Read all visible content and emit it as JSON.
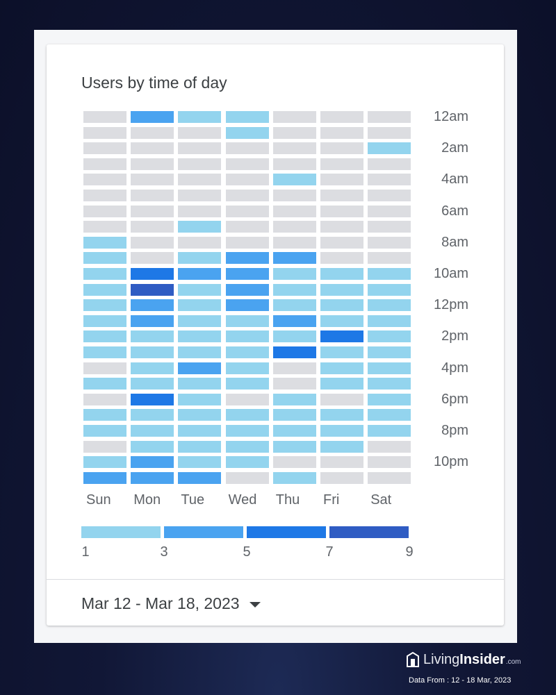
{
  "card": {
    "title": "Users by time of day",
    "date_range": "Mar 12 - Mar 18, 2023"
  },
  "branding": {
    "name_part1": "Living",
    "name_part2": "Insider",
    "name_suffix": ".com",
    "data_from": "Data From : 12 - 18 Mar, 2023"
  },
  "chart_data": {
    "type": "heatmap",
    "title": "Users by time of day",
    "columns": [
      "Sun",
      "Mon",
      "Tue",
      "Wed",
      "Thu",
      "Fri",
      "Sat"
    ],
    "rows": [
      "12am",
      "1am",
      "2am",
      "3am",
      "4am",
      "5am",
      "6am",
      "7am",
      "8am",
      "9am",
      "10am",
      "11am",
      "12pm",
      "1pm",
      "2pm",
      "3pm",
      "4pm",
      "5pm",
      "6pm",
      "7pm",
      "8pm",
      "9pm",
      "10pm",
      "11pm"
    ],
    "row_tick_labels": [
      "12am",
      "2am",
      "4am",
      "6am",
      "8am",
      "10am",
      "12pm",
      "2pm",
      "4pm",
      "6pm",
      "8pm",
      "10pm"
    ],
    "values": [
      [
        0,
        3,
        1,
        1,
        0,
        0,
        0
      ],
      [
        0,
        0,
        0,
        1,
        0,
        0,
        0
      ],
      [
        0,
        0,
        0,
        0,
        0,
        0,
        1
      ],
      [
        0,
        0,
        0,
        0,
        0,
        0,
        0
      ],
      [
        0,
        0,
        0,
        0,
        1,
        0,
        0
      ],
      [
        0,
        0,
        0,
        0,
        0,
        0,
        0
      ],
      [
        0,
        0,
        0,
        0,
        0,
        0,
        0
      ],
      [
        0,
        0,
        1,
        0,
        0,
        0,
        0
      ],
      [
        1,
        0,
        0,
        0,
        0,
        0,
        0
      ],
      [
        1,
        0,
        1,
        3,
        3,
        0,
        0
      ],
      [
        1,
        5,
        3,
        3,
        1,
        1,
        1
      ],
      [
        1,
        7,
        1,
        3,
        1,
        1,
        1
      ],
      [
        1,
        3,
        1,
        3,
        1,
        1,
        1
      ],
      [
        1,
        3,
        1,
        1,
        3,
        1,
        1
      ],
      [
        1,
        1,
        1,
        1,
        1,
        5,
        1
      ],
      [
        1,
        1,
        1,
        1,
        5,
        1,
        1
      ],
      [
        0,
        1,
        3,
        1,
        0,
        1,
        1
      ],
      [
        1,
        1,
        1,
        1,
        0,
        1,
        1
      ],
      [
        0,
        5,
        1,
        0,
        1,
        0,
        1
      ],
      [
        1,
        1,
        1,
        1,
        1,
        1,
        1
      ],
      [
        1,
        1,
        1,
        1,
        1,
        1,
        1
      ],
      [
        0,
        1,
        1,
        1,
        1,
        1,
        0
      ],
      [
        1,
        3,
        1,
        1,
        0,
        0,
        0
      ],
      [
        3,
        3,
        3,
        0,
        1,
        0,
        0
      ]
    ],
    "legend": {
      "ticks": [
        "1",
        "3",
        "5",
        "7",
        "9"
      ],
      "colors": [
        "#93d4ee",
        "#4aa3f0",
        "#1e78e6",
        "#2f5cc3"
      ]
    },
    "empty_color": "#dcdde1"
  }
}
